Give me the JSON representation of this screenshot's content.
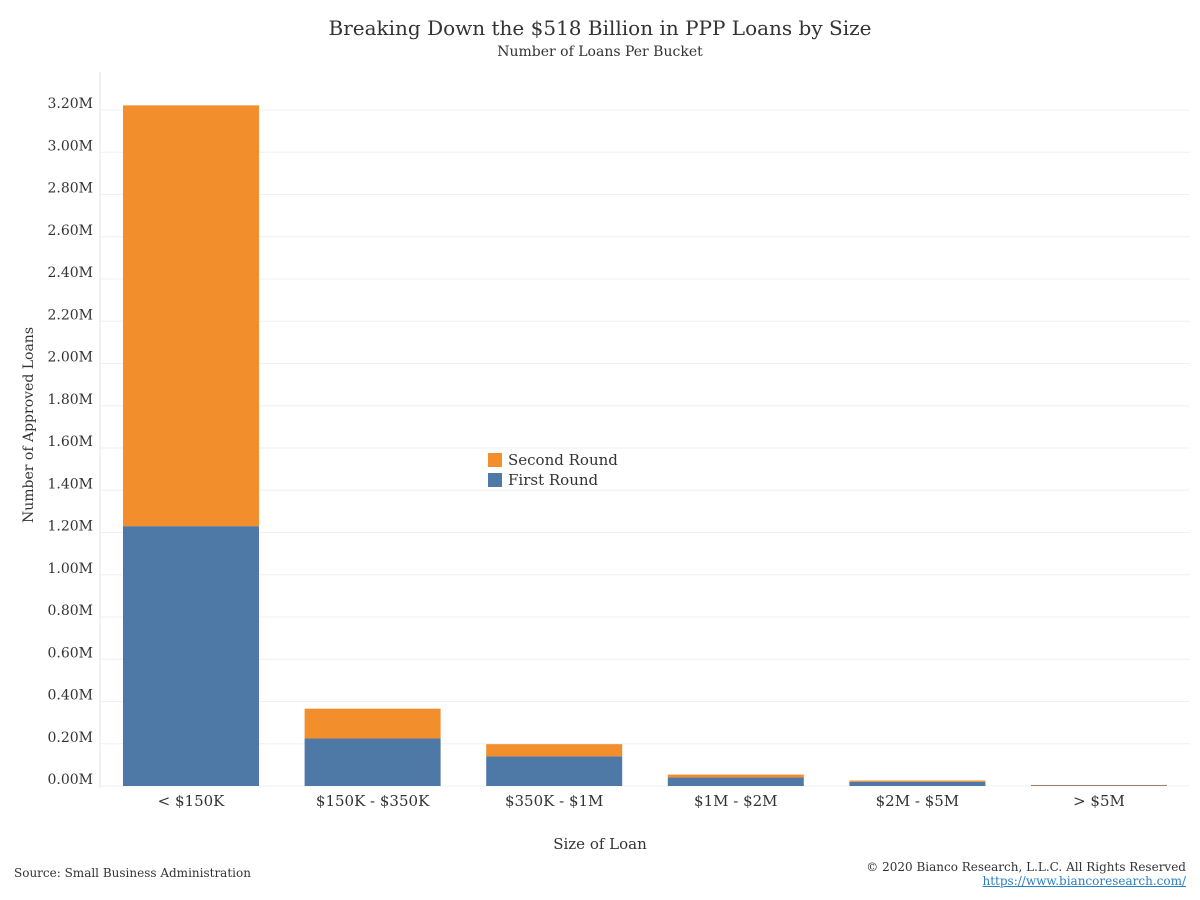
{
  "chart_data": {
    "type": "bar",
    "stacked": true,
    "title": "Breaking Down the $518 Billion in PPP Loans by Size",
    "subtitle": "Number of Loans Per Bucket",
    "xlabel": "Size of Loan",
    "ylabel": "Number of Approved Loans",
    "categories": [
      "< $150K",
      "$150K - $350K",
      "$350K - $1M",
      "$1M - $2M",
      "$2M - $5M",
      "> $5M"
    ],
    "series": [
      {
        "name": "First Round",
        "color": "#4e79a7",
        "values": [
          1230000,
          225000,
          140000,
          40000,
          20000,
          4000
        ]
      },
      {
        "name": "Second Round",
        "color": "#f28e2b",
        "values": [
          1992000,
          141000,
          58000,
          14000,
          6000,
          1000
        ]
      }
    ],
    "yticks": [
      {
        "value": 0,
        "label": "0.00M"
      },
      {
        "value": 200000,
        "label": "0.20M"
      },
      {
        "value": 400000,
        "label": "0.40M"
      },
      {
        "value": 600000,
        "label": "0.60M"
      },
      {
        "value": 800000,
        "label": "0.80M"
      },
      {
        "value": 1000000,
        "label": "1.00M"
      },
      {
        "value": 1200000,
        "label": "1.20M"
      },
      {
        "value": 1400000,
        "label": "1.40M"
      },
      {
        "value": 1600000,
        "label": "1.60M"
      },
      {
        "value": 1800000,
        "label": "1.80M"
      },
      {
        "value": 2000000,
        "label": "2.00M"
      },
      {
        "value": 2200000,
        "label": "2.20M"
      },
      {
        "value": 2400000,
        "label": "2.40M"
      },
      {
        "value": 2600000,
        "label": "2.60M"
      },
      {
        "value": 2800000,
        "label": "2.80M"
      },
      {
        "value": 3000000,
        "label": "3.00M"
      },
      {
        "value": 3200000,
        "label": "3.20M"
      }
    ],
    "ylim": [
      0,
      3200000
    ],
    "legend": {
      "position": "center",
      "entries": [
        "Second Round",
        "First Round"
      ]
    },
    "grid": true
  },
  "footer": {
    "source": "Source: Small Business Administration",
    "copyright": "© 2020 Bianco Research, L.L.C. All Rights Reserved",
    "url": "https://www.biancoresearch.com/"
  }
}
